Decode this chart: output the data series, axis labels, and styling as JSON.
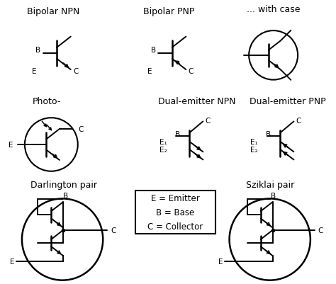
{
  "bg_color": "#ffffff",
  "line_color": "#000000",
  "text_color": "#000000",
  "labels": {
    "bipolar_npn": "Bipolar NPN",
    "bipolar_pnp": "Bipolar PNP",
    "with_case": "... with case",
    "photo": "Photo-",
    "dual_npn": "Dual-emitter NPN",
    "dual_pnp": "Dual-emitter PNP",
    "darlington": "Darlington pair",
    "sziklai": "Sziklai pair",
    "legend_line1": "E = Emitter",
    "legend_line2": "B = Base",
    "legend_line3": "C = Collector"
  },
  "font_size": 8.5
}
